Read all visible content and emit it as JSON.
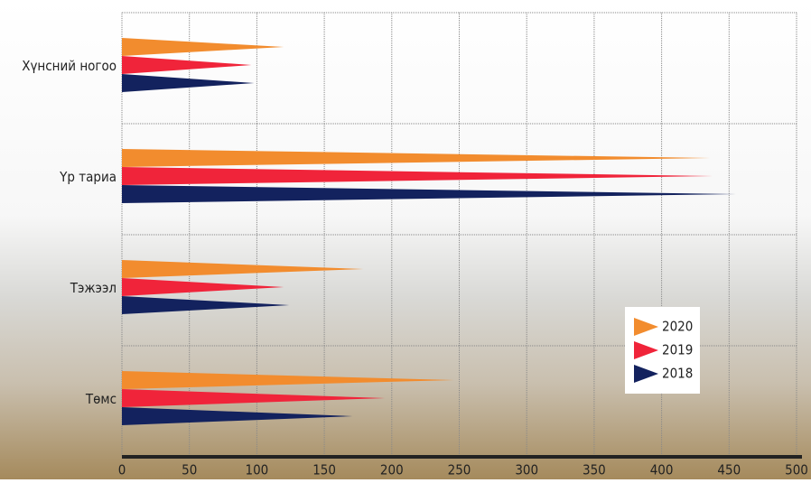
{
  "chart_data": {
    "type": "triangle-bar",
    "categories": [
      "Хүнсний ногоо",
      "Үр тариа",
      "Тэжээл",
      "Төмс"
    ],
    "series": [
      {
        "name": "2020",
        "color": "#f28c2e",
        "values": [
          120,
          436,
          179,
          246
        ]
      },
      {
        "name": "2019",
        "color": "#f0243a",
        "values": [
          96,
          438,
          120,
          195
        ]
      },
      {
        "name": "2018",
        "color": "#13225e",
        "values": [
          98,
          455,
          124,
          171
        ]
      }
    ],
    "xlim": [
      0,
      500
    ],
    "xticks": [
      0,
      50,
      100,
      150,
      200,
      250,
      300,
      350,
      400,
      450,
      500
    ],
    "grid": true
  }
}
